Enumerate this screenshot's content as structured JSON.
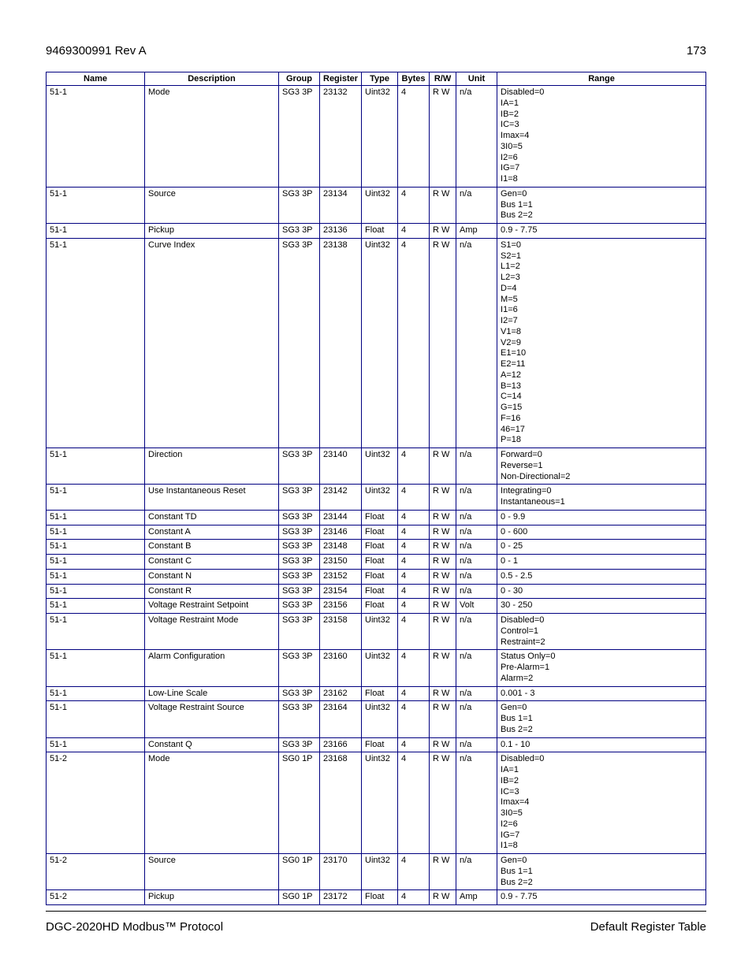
{
  "header": {
    "doc_id": "9469300991 Rev A",
    "page_number": "173"
  },
  "footer": {
    "left": "DGC-2020HD Modbus™ Protocol",
    "right": "Default Register Table"
  },
  "table": {
    "columns": [
      "Name",
      "Description",
      "Group",
      "Register",
      "Type",
      "Bytes",
      "R/W",
      "Unit",
      "Range"
    ],
    "border_color": "#000080",
    "font_size_pt": 8,
    "rows": [
      {
        "name": "51-1",
        "desc": "Mode",
        "group": "SG3 3P",
        "reg": "23132",
        "type": "Uint32",
        "bytes": "4",
        "rw": "R W",
        "unit": "n/a",
        "range": "Disabled=0\nIA=1\nIB=2\nIC=3\nImax=4\n3I0=5\nI2=6\nIG=7\nI1=8"
      },
      {
        "name": "51-1",
        "desc": "Source",
        "group": "SG3 3P",
        "reg": "23134",
        "type": "Uint32",
        "bytes": "4",
        "rw": "R W",
        "unit": "n/a",
        "range": "Gen=0\nBus 1=1\nBus 2=2"
      },
      {
        "name": "51-1",
        "desc": "Pickup",
        "group": "SG3 3P",
        "reg": "23136",
        "type": "Float",
        "bytes": "4",
        "rw": "R W",
        "unit": "Amp",
        "range": "0.9 - 7.75"
      },
      {
        "name": "51-1",
        "desc": "Curve Index",
        "group": "SG3 3P",
        "reg": "23138",
        "type": "Uint32",
        "bytes": "4",
        "rw": "R W",
        "unit": "n/a",
        "range": "S1=0\nS2=1\nL1=2\nL2=3\nD=4\nM=5\nI1=6\nI2=7\nV1=8\nV2=9\nE1=10\nE2=11\nA=12\nB=13\nC=14\nG=15\nF=16\n46=17\nP=18"
      },
      {
        "name": "51-1",
        "desc": "Direction",
        "group": "SG3 3P",
        "reg": "23140",
        "type": "Uint32",
        "bytes": "4",
        "rw": "R W",
        "unit": "n/a",
        "range": "Forward=0\nReverse=1\nNon-Directional=2"
      },
      {
        "name": "51-1",
        "desc": "Use Instantaneous Reset",
        "group": "SG3 3P",
        "reg": "23142",
        "type": "Uint32",
        "bytes": "4",
        "rw": "R W",
        "unit": "n/a",
        "range": "Integrating=0\nInstantaneous=1"
      },
      {
        "name": "51-1",
        "desc": "Constant TD",
        "group": "SG3 3P",
        "reg": "23144",
        "type": "Float",
        "bytes": "4",
        "rw": "R W",
        "unit": "n/a",
        "range": "0 - 9.9"
      },
      {
        "name": "51-1",
        "desc": "Constant A",
        "group": "SG3 3P",
        "reg": "23146",
        "type": "Float",
        "bytes": "4",
        "rw": "R W",
        "unit": "n/a",
        "range": "0 - 600"
      },
      {
        "name": "51-1",
        "desc": "Constant B",
        "group": "SG3 3P",
        "reg": "23148",
        "type": "Float",
        "bytes": "4",
        "rw": "R W",
        "unit": "n/a",
        "range": "0 - 25"
      },
      {
        "name": "51-1",
        "desc": "Constant C",
        "group": "SG3 3P",
        "reg": "23150",
        "type": "Float",
        "bytes": "4",
        "rw": "R W",
        "unit": "n/a",
        "range": "0 - 1"
      },
      {
        "name": "51-1",
        "desc": "Constant N",
        "group": "SG3 3P",
        "reg": "23152",
        "type": "Float",
        "bytes": "4",
        "rw": "R W",
        "unit": "n/a",
        "range": "0.5 - 2.5"
      },
      {
        "name": "51-1",
        "desc": "Constant R",
        "group": "SG3 3P",
        "reg": "23154",
        "type": "Float",
        "bytes": "4",
        "rw": "R W",
        "unit": "n/a",
        "range": "0 - 30"
      },
      {
        "name": "51-1",
        "desc": "Voltage Restraint Setpoint",
        "group": "SG3 3P",
        "reg": "23156",
        "type": "Float",
        "bytes": "4",
        "rw": "R W",
        "unit": "Volt",
        "range": "30 - 250"
      },
      {
        "name": "51-1",
        "desc": "Voltage Restraint Mode",
        "group": "SG3 3P",
        "reg": "23158",
        "type": "Uint32",
        "bytes": "4",
        "rw": "R W",
        "unit": "n/a",
        "range": "Disabled=0\nControl=1\nRestraint=2"
      },
      {
        "name": "51-1",
        "desc": "Alarm Configuration",
        "group": "SG3 3P",
        "reg": "23160",
        "type": "Uint32",
        "bytes": "4",
        "rw": "R W",
        "unit": "n/a",
        "range": "Status Only=0\nPre-Alarm=1\nAlarm=2"
      },
      {
        "name": "51-1",
        "desc": "Low-Line Scale",
        "group": "SG3 3P",
        "reg": "23162",
        "type": "Float",
        "bytes": "4",
        "rw": "R W",
        "unit": "n/a",
        "range": "0.001 - 3"
      },
      {
        "name": "51-1",
        "desc": "Voltage Restraint Source",
        "group": "SG3 3P",
        "reg": "23164",
        "type": "Uint32",
        "bytes": "4",
        "rw": "R W",
        "unit": "n/a",
        "range": "Gen=0\nBus 1=1\nBus 2=2"
      },
      {
        "name": "51-1",
        "desc": "Constant Q",
        "group": "SG3 3P",
        "reg": "23166",
        "type": "Float",
        "bytes": "4",
        "rw": "R W",
        "unit": "n/a",
        "range": "0.1 - 10"
      },
      {
        "name": "51-2",
        "desc": "Mode",
        "group": "SG0 1P",
        "reg": "23168",
        "type": "Uint32",
        "bytes": "4",
        "rw": "R W",
        "unit": "n/a",
        "range": "Disabled=0\nIA=1\nIB=2\nIC=3\nImax=4\n3I0=5\nI2=6\nIG=7\nI1=8"
      },
      {
        "name": "51-2",
        "desc": "Source",
        "group": "SG0 1P",
        "reg": "23170",
        "type": "Uint32",
        "bytes": "4",
        "rw": "R W",
        "unit": "n/a",
        "range": "Gen=0\nBus 1=1\nBus 2=2"
      },
      {
        "name": "51-2",
        "desc": "Pickup",
        "group": "SG0 1P",
        "reg": "23172",
        "type": "Float",
        "bytes": "4",
        "rw": "R W",
        "unit": "Amp",
        "range": "0.9 - 7.75"
      }
    ]
  }
}
